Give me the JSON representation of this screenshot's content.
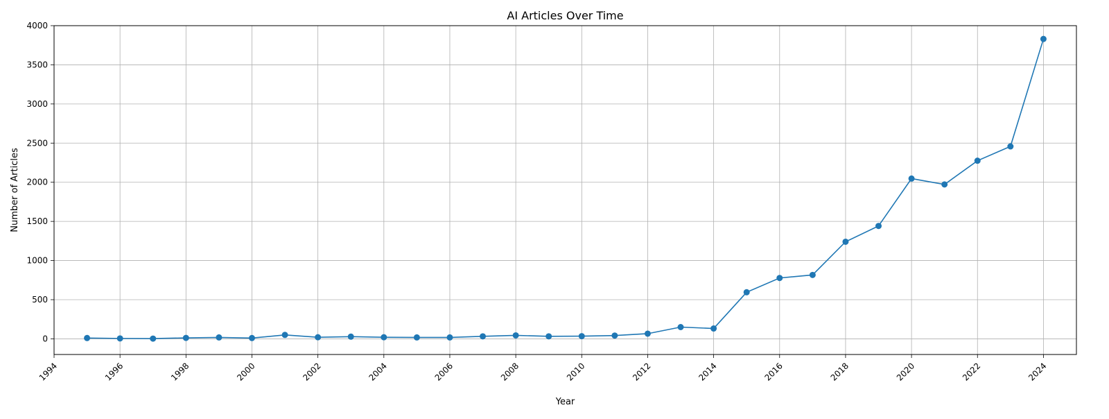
{
  "chart_data": {
    "type": "line",
    "title": "AI Articles Over Time",
    "xlabel": "Year",
    "ylabel": "Number of Articles",
    "xlim": [
      1994,
      2025
    ],
    "ylim": [
      -200,
      4000
    ],
    "x_ticks": [
      1994,
      1996,
      1998,
      2000,
      2002,
      2004,
      2006,
      2008,
      2010,
      2012,
      2014,
      2016,
      2018,
      2020,
      2022,
      2024
    ],
    "y_ticks": [
      0,
      500,
      1000,
      1500,
      2000,
      2500,
      3000,
      3500,
      4000
    ],
    "grid": true,
    "series": [
      {
        "color": "#1f77b4",
        "marker": "circle",
        "x": [
          1995,
          1996,
          1997,
          1998,
          1999,
          2000,
          2001,
          2002,
          2003,
          2004,
          2005,
          2006,
          2007,
          2008,
          2009,
          2010,
          2011,
          2012,
          2013,
          2014,
          2015,
          2016,
          2017,
          2018,
          2019,
          2020,
          2021,
          2022,
          2023,
          2024
        ],
        "y": [
          10,
          5,
          3,
          12,
          18,
          10,
          50,
          20,
          28,
          20,
          18,
          18,
          32,
          44,
          32,
          34,
          42,
          66,
          150,
          132,
          595,
          777,
          816,
          1240,
          1442,
          2047,
          1972,
          2275,
          2458,
          3830
        ]
      }
    ]
  }
}
